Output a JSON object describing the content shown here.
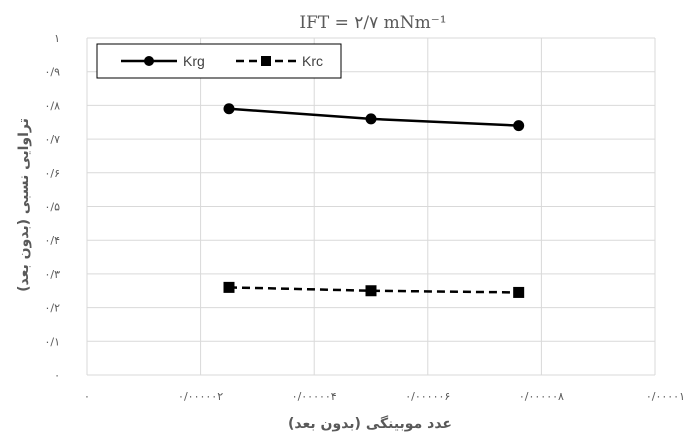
{
  "chart_data": {
    "type": "line",
    "title": "IFT = ۲/۷ mNm⁻¹",
    "xlabel": "عدد موبینگی (بدون بعد)",
    "ylabel": "تراوایی نسبی (بدون بعد)",
    "xlim": [
      0,
      1e-05
    ],
    "ylim": [
      0,
      1
    ],
    "grid": true,
    "legend_position": "top-left",
    "x_tick_labels": [
      "۰",
      "۰/۰۰۰۰۰۲",
      "۰/۰۰۰۰۰۴",
      "۰/۰۰۰۰۰۶",
      "۰/۰۰۰۰۰۸",
      "۰/۰۰۰۰۱"
    ],
    "y_tick_labels": [
      "۰",
      "۰/۱",
      "۰/۲",
      "۰/۳",
      "۰/۴",
      "۰/۵",
      "۰/۶",
      "۰/۷",
      "۰/۸",
      "۰/۹",
      "۱"
    ],
    "series": [
      {
        "name": "Krg",
        "style": "solid",
        "marker": "circle",
        "color": "#000000",
        "x": [
          2.5e-06,
          5e-06,
          7.6e-06
        ],
        "y": [
          0.79,
          0.76,
          0.74
        ]
      },
      {
        "name": "Krc",
        "style": "dashed",
        "marker": "square",
        "color": "#000000",
        "x": [
          2.5e-06,
          5e-06,
          7.6e-06
        ],
        "y": [
          0.26,
          0.25,
          0.245
        ]
      }
    ]
  }
}
